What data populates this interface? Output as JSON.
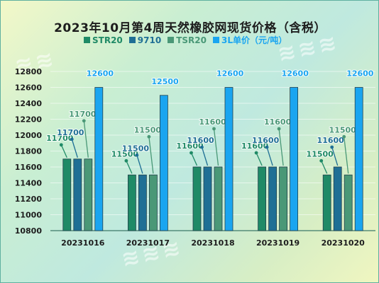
{
  "chart_data": {
    "type": "bar",
    "title": "2023年10月第4周天然橡胶网现货价格（含税）",
    "categories": [
      "20231016",
      "20231017",
      "20231018",
      "20231019",
      "20231020"
    ],
    "series": [
      {
        "name": "STR20",
        "color": "#1f8a66",
        "values": [
          11700,
          11500,
          11600,
          11600,
          11500
        ]
      },
      {
        "name": "9710",
        "color": "#1f6f95",
        "values": [
          11700,
          11500,
          11600,
          11600,
          11600
        ]
      },
      {
        "name": "TSR20",
        "color": "#4a9877",
        "values": [
          11700,
          11500,
          11600,
          11600,
          11500
        ]
      },
      {
        "name": "3L单价（元/吨）",
        "color": "#1aa5f0",
        "values": [
          12600,
          12500,
          12600,
          12600,
          12600
        ]
      }
    ],
    "ylim": [
      10800,
      12800
    ],
    "yticks": [
      10800,
      11000,
      11200,
      11400,
      11600,
      11800,
      12000,
      12200,
      12400,
      12600,
      12800
    ],
    "xlabel": "",
    "ylabel": "",
    "grid": true,
    "legend_position": "top"
  }
}
